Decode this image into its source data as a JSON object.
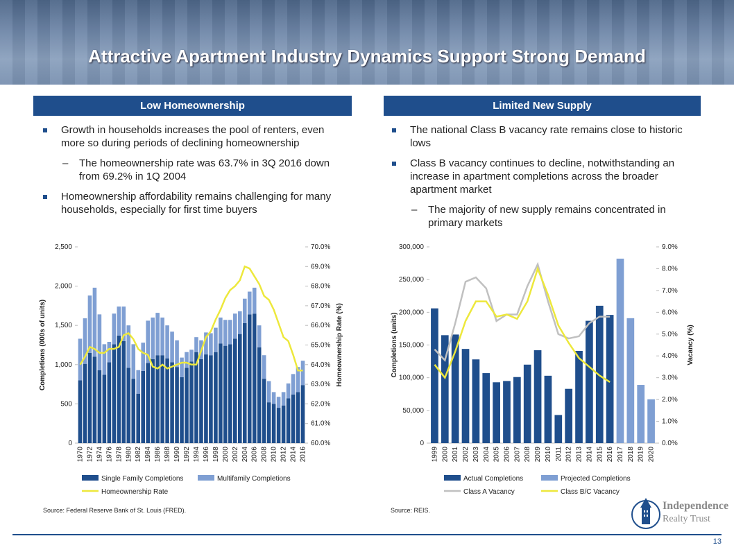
{
  "slide": {
    "title": "Attractive Apartment Industry Dynamics Support Strong Demand",
    "left": {
      "heading": "Low Homeownership",
      "items": [
        {
          "text": "Growth in households increases the pool of renters, even more so during periods of declining homeownership",
          "sub": [
            "The homeownership rate was 63.7% in 3Q 2016 down from 69.2% in 1Q 2004"
          ]
        },
        {
          "text": "Homeownership affordability remains challenging for many households, especially for first time buyers",
          "sub": []
        }
      ],
      "source": "Source: Federal Reserve Bank of St. Louis (FRED)."
    },
    "right": {
      "heading": "Limited New Supply",
      "items": [
        {
          "text": "The national Class B vacancy rate remains close to historic lows",
          "sub": []
        },
        {
          "text": "Class B vacancy continues to decline, notwithstanding an increase in apartment completions across the broader apartment market",
          "sub": [
            "The majority of new supply remains concentrated in primary markets"
          ]
        }
      ],
      "source": "Source: REIS."
    },
    "logo": {
      "line1": "Independence",
      "line2": "Realty Trust"
    },
    "page_number": "13"
  },
  "chart_data": [
    {
      "type": "bar",
      "stacked": true,
      "legend": "bottom",
      "y_label": "Completions (000s of units)",
      "y2_label": "Homeownership Rate (%)",
      "categories": [
        "1970",
        null,
        "1972",
        null,
        "1974",
        null,
        "1976",
        null,
        "1978",
        null,
        "1980",
        null,
        "1982",
        null,
        "1984",
        null,
        "1986",
        null,
        "1988",
        null,
        "1990",
        null,
        "1992",
        null,
        "1994",
        null,
        "1996",
        null,
        "1998",
        null,
        "2000",
        null,
        "2002",
        null,
        "2004",
        null,
        "2006",
        null,
        "2008",
        null,
        "2010",
        null,
        "2012",
        null,
        "2014",
        null,
        "2016"
      ],
      "ylim": [
        0,
        2500
      ],
      "yticks": [
        0,
        500,
        {
          "value": 1000,
          "label": "1,000"
        },
        {
          "value": 1500,
          "label": "1,500"
        },
        {
          "value": 2000,
          "label": "2,000"
        },
        {
          "value": 2500,
          "label": "2,500"
        }
      ],
      "y2lim": [
        60,
        70
      ],
      "y2ticks": [
        {
          "value": 60,
          "label": "60.0%"
        },
        {
          "value": 61,
          "label": "61.0%"
        },
        {
          "value": 62,
          "label": "62.0%"
        },
        {
          "value": 63,
          "label": "63.0%"
        },
        {
          "value": 64,
          "label": "64.0%"
        },
        {
          "value": 65,
          "label": "65.0%"
        },
        {
          "value": 66,
          "label": "66.0%"
        },
        {
          "value": 67,
          "label": "67.0%"
        },
        {
          "value": 68,
          "label": "68.0%"
        },
        {
          "value": 69,
          "label": "69.0%"
        },
        {
          "value": 70,
          "label": "70.0%"
        }
      ],
      "series": [
        {
          "name": "Single Family Completions",
          "color": "#1f4e8c",
          "values": [
            800,
            1010,
            1150,
            1100,
            930,
            870,
            1030,
            1260,
            1370,
            1300,
            960,
            820,
            630,
            920,
            1020,
            1070,
            1120,
            1120,
            1080,
            1030,
            970,
            840,
            960,
            1040,
            1160,
            1070,
            1130,
            1120,
            1160,
            1270,
            1240,
            1260,
            1330,
            1390,
            1530,
            1640,
            1650,
            1220,
            820,
            520,
            500,
            450,
            480,
            570,
            620,
            650,
            740
          ]
        },
        {
          "name": "Multifamily Completions",
          "color": "#7f9fd3",
          "values": [
            530,
            580,
            730,
            880,
            710,
            390,
            260,
            390,
            370,
            440,
            540,
            440,
            300,
            360,
            540,
            530,
            540,
            480,
            420,
            390,
            340,
            250,
            200,
            150,
            190,
            240,
            280,
            280,
            310,
            330,
            330,
            310,
            320,
            290,
            310,
            290,
            330,
            280,
            300,
            270,
            150,
            140,
            170,
            190,
            260,
            320,
            310
          ]
        },
        {
          "name": "Homeownership Rate",
          "color": "#ede83c",
          "axis": "y2",
          "type": "line",
          "values": [
            64.0,
            64.4,
            64.9,
            64.8,
            64.6,
            64.6,
            64.8,
            64.8,
            64.9,
            65.5,
            65.6,
            65.3,
            64.8,
            64.6,
            64.5,
            63.9,
            63.8,
            64.0,
            63.8,
            63.9,
            64.0,
            64.1,
            64.1,
            64.0,
            64.0,
            64.7,
            65.4,
            65.7,
            66.3,
            66.8,
            67.4,
            67.8,
            68.0,
            68.3,
            69.0,
            68.9,
            68.5,
            68.1,
            67.5,
            67.3,
            66.8,
            66.1,
            65.4,
            65.2,
            64.5,
            63.7,
            63.7
          ]
        }
      ]
    },
    {
      "type": "bar",
      "stacked": true,
      "legend": "bottom",
      "y_label": "Completions (units)",
      "y2_label": "Vacancy (%)",
      "categories": [
        "1999",
        "2000",
        "2001",
        "2002",
        "2003",
        "2004",
        "2005",
        "2006",
        "2007",
        "2008",
        "2009",
        "2010",
        "2011",
        "2012",
        "2013",
        "2014",
        "2015",
        "2016",
        "2017",
        "2018",
        "2019",
        "2020"
      ],
      "ylim": [
        0,
        300000
      ],
      "yticks": [
        0,
        {
          "value": 50000,
          "label": "50,000"
        },
        {
          "value": 100000,
          "label": "100,000"
        },
        {
          "value": 150000,
          "label": "150,000"
        },
        {
          "value": 200000,
          "label": "200,000"
        },
        {
          "value": 250000,
          "label": "250,000"
        },
        {
          "value": 300000,
          "label": "300,000"
        }
      ],
      "y2lim": [
        0,
        9
      ],
      "y2ticks": [
        {
          "value": 0,
          "label": "0.0%"
        },
        {
          "value": 1,
          "label": "1.0%"
        },
        {
          "value": 2,
          "label": "2.0%"
        },
        {
          "value": 3,
          "label": "3.0%"
        },
        {
          "value": 4,
          "label": "4.0%"
        },
        {
          "value": 5,
          "label": "5.0%"
        },
        {
          "value": 6,
          "label": "6.0%"
        },
        {
          "value": 7,
          "label": "7.0%"
        },
        {
          "value": 8,
          "label": "8.0%"
        },
        {
          "value": 9,
          "label": "9.0%"
        }
      ],
      "series": [
        {
          "name": "Actual Completions",
          "color": "#1f4e8c",
          "values": [
            206000,
            165000,
            166000,
            144000,
            128000,
            107000,
            93000,
            95000,
            101000,
            120000,
            142000,
            103000,
            43000,
            83000,
            141000,
            187000,
            210000,
            196000,
            null,
            null,
            null,
            null
          ]
        },
        {
          "name": "Projected Completions",
          "color": "#7f9fd3",
          "values": [
            null,
            null,
            null,
            null,
            null,
            null,
            null,
            null,
            null,
            null,
            null,
            null,
            null,
            null,
            null,
            null,
            null,
            null,
            282000,
            191000,
            89000,
            67000
          ]
        },
        {
          "name": "Class A Vacancy",
          "color": "#c0c0c0",
          "axis": "y2",
          "type": "line",
          "values": [
            4.3,
            3.8,
            5.5,
            7.4,
            7.6,
            7.1,
            5.6,
            5.9,
            5.9,
            7.2,
            8.2,
            6.5,
            5.0,
            4.8,
            4.9,
            5.5,
            5.8,
            5.8,
            null,
            null,
            null,
            null
          ]
        },
        {
          "name": "Class B/C Vacancy",
          "color": "#ede83c",
          "axis": "y2",
          "type": "line",
          "values": [
            3.6,
            3.0,
            4.2,
            5.6,
            6.5,
            6.5,
            5.8,
            5.9,
            5.7,
            6.5,
            8.0,
            6.8,
            5.4,
            4.6,
            3.9,
            3.5,
            3.1,
            2.8,
            null,
            null,
            null,
            null
          ]
        }
      ]
    }
  ]
}
